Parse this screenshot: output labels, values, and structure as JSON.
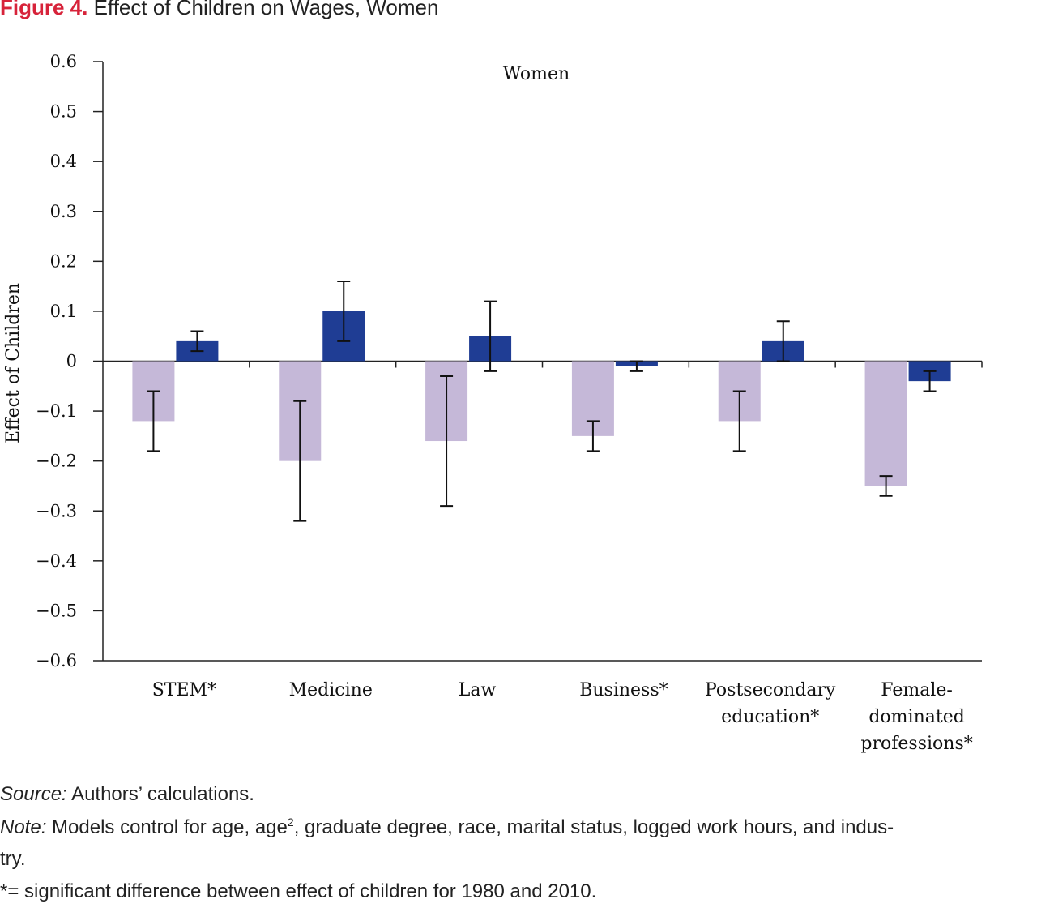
{
  "figure": {
    "number": "Figure 4.",
    "title": "Effect of Children on Wages, Women"
  },
  "colors": {
    "light": "#c5b8d8",
    "dark": "#1f3d94",
    "title_accent": "#d7233a"
  },
  "chart_data": {
    "type": "bar",
    "panel_label": "Women",
    "ylabel": "Effect of  Children",
    "ylim": [
      -0.6,
      0.6
    ],
    "yticks": [
      0.6,
      0.5,
      0.4,
      0.3,
      0.2,
      0.1,
      0,
      -0.1,
      -0.2,
      -0.3,
      -0.4,
      -0.5,
      -0.6
    ],
    "ytick_labels": [
      "0.6",
      "0.5",
      "0.4",
      "0.3",
      "0.2",
      "0.1",
      "0",
      "−0.1",
      "−0.2",
      "−0.3",
      "−0.4",
      "−0.5",
      "−0.6"
    ],
    "categories": [
      [
        "STEM*"
      ],
      [
        "Medicine"
      ],
      [
        "Law"
      ],
      [
        "Business*"
      ],
      [
        "Postsecondary",
        "education*"
      ],
      [
        "Female-",
        "dominated",
        "professions*"
      ]
    ],
    "series": [
      {
        "color": "#c5b8d8",
        "values": [
          -0.12,
          -0.2,
          -0.16,
          -0.15,
          -0.12,
          -0.25
        ],
        "error_low": [
          -0.18,
          -0.32,
          -0.29,
          -0.18,
          -0.18,
          -0.27
        ],
        "error_high": [
          -0.06,
          -0.08,
          -0.03,
          -0.12,
          -0.06,
          -0.23
        ]
      },
      {
        "color": "#1f3d94",
        "values": [
          0.04,
          0.1,
          0.05,
          -0.01,
          0.04,
          -0.04
        ],
        "error_low": [
          0.02,
          0.04,
          -0.02,
          -0.02,
          0.0,
          -0.06
        ],
        "error_high": [
          0.06,
          0.16,
          0.12,
          0.0,
          0.08,
          -0.02
        ]
      }
    ]
  },
  "footer": {
    "source_label": "Source:",
    "source_text": " Authors’ calculations.",
    "note_label": "Note:",
    "note_text_1": " Models control for age, age",
    "note_sup": "2",
    "note_text_2": ", graduate degree, race, marital status, logged work hours, and indus-",
    "note_text_3": "try.",
    "significance": "*= significant difference between effect of children for 1980 and 2010."
  }
}
